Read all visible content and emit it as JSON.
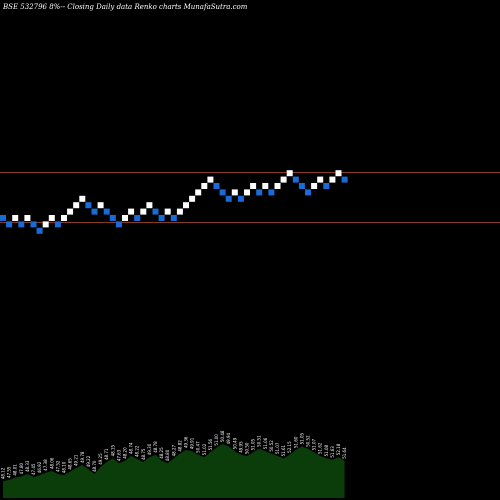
{
  "header": {
    "title": "BSE 532796  8%-- Closing Daily data  Renko  charts MunafaSutra.com"
  },
  "colors": {
    "background": "#000000",
    "up_brick": "#ffffff",
    "down_brick": "#1a6ad8",
    "reference_line": "#b5512e",
    "volume_fill": "#0a3d0a"
  },
  "chart_data": {
    "type": "renko",
    "title": "BSE 532796  8%-- Closing Daily data  Renko  charts MunafaSutra.com",
    "bricks": [
      {
        "level": 0,
        "dir": "down"
      },
      {
        "level": -1,
        "dir": "down"
      },
      {
        "level": 0,
        "dir": "up"
      },
      {
        "level": -1,
        "dir": "down"
      },
      {
        "level": 0,
        "dir": "up"
      },
      {
        "level": -1,
        "dir": "down"
      },
      {
        "level": -2,
        "dir": "down"
      },
      {
        "level": -1,
        "dir": "up"
      },
      {
        "level": 0,
        "dir": "up"
      },
      {
        "level": -1,
        "dir": "down"
      },
      {
        "level": 0,
        "dir": "up"
      },
      {
        "level": 1,
        "dir": "up"
      },
      {
        "level": 2,
        "dir": "up"
      },
      {
        "level": 3,
        "dir": "up"
      },
      {
        "level": 2,
        "dir": "down"
      },
      {
        "level": 1,
        "dir": "down"
      },
      {
        "level": 2,
        "dir": "up"
      },
      {
        "level": 1,
        "dir": "down"
      },
      {
        "level": 0,
        "dir": "down"
      },
      {
        "level": -1,
        "dir": "down"
      },
      {
        "level": 0,
        "dir": "up"
      },
      {
        "level": 1,
        "dir": "up"
      },
      {
        "level": 0,
        "dir": "down"
      },
      {
        "level": 1,
        "dir": "up"
      },
      {
        "level": 2,
        "dir": "up"
      },
      {
        "level": 1,
        "dir": "down"
      },
      {
        "level": 0,
        "dir": "down"
      },
      {
        "level": 1,
        "dir": "up"
      },
      {
        "level": 0,
        "dir": "down"
      },
      {
        "level": 1,
        "dir": "up"
      },
      {
        "level": 2,
        "dir": "up"
      },
      {
        "level": 3,
        "dir": "up"
      },
      {
        "level": 4,
        "dir": "up"
      },
      {
        "level": 5,
        "dir": "up"
      },
      {
        "level": 6,
        "dir": "up"
      },
      {
        "level": 5,
        "dir": "down"
      },
      {
        "level": 4,
        "dir": "down"
      },
      {
        "level": 3,
        "dir": "down"
      },
      {
        "level": 4,
        "dir": "up"
      },
      {
        "level": 3,
        "dir": "down"
      },
      {
        "level": 4,
        "dir": "up"
      },
      {
        "level": 5,
        "dir": "up"
      },
      {
        "level": 4,
        "dir": "down"
      },
      {
        "level": 5,
        "dir": "up"
      },
      {
        "level": 4,
        "dir": "down"
      },
      {
        "level": 5,
        "dir": "up"
      },
      {
        "level": 6,
        "dir": "up"
      },
      {
        "level": 7,
        "dir": "up"
      },
      {
        "level": 6,
        "dir": "down"
      },
      {
        "level": 5,
        "dir": "down"
      },
      {
        "level": 4,
        "dir": "down"
      },
      {
        "level": 5,
        "dir": "up"
      },
      {
        "level": 6,
        "dir": "up"
      },
      {
        "level": 5,
        "dir": "down"
      },
      {
        "level": 6,
        "dir": "up"
      },
      {
        "level": 7,
        "dir": "up"
      },
      {
        "level": 6,
        "dir": "down"
      }
    ],
    "reference_lines": [
      6,
      -1
    ],
    "volume": [
      0.28,
      0.3,
      0.34,
      0.36,
      0.4,
      0.35,
      0.38,
      0.42,
      0.45,
      0.4,
      0.38,
      0.44,
      0.5,
      0.55,
      0.48,
      0.4,
      0.52,
      0.6,
      0.66,
      0.58,
      0.62,
      0.7,
      0.65,
      0.6,
      0.68,
      0.72,
      0.62,
      0.58,
      0.66,
      0.74,
      0.8,
      0.78,
      0.72,
      0.68,
      0.76,
      0.84,
      0.9,
      0.86,
      0.78,
      0.72,
      0.7,
      0.76,
      0.82,
      0.78,
      0.74,
      0.7,
      0.66,
      0.72,
      0.8,
      0.86,
      0.82,
      0.76,
      0.7,
      0.66,
      0.64,
      0.68,
      0.62
    ],
    "volume_labels": [
      "48.12",
      "47.55",
      "48.01",
      "47.80",
      "48.33",
      "47.45",
      "46.92",
      "47.38",
      "48.06",
      "47.52",
      "48.10",
      "48.65",
      "49.21",
      "49.78",
      "49.22",
      "48.70",
      "49.25",
      "48.71",
      "48.15",
      "47.63",
      "48.20",
      "48.74",
      "48.22",
      "48.75",
      "49.30",
      "48.78",
      "48.25",
      "48.80",
      "48.27",
      "48.82",
      "49.36",
      "49.91",
      "50.47",
      "51.02",
      "51.56",
      "51.00",
      "50.48",
      "49.94",
      "50.49",
      "49.95",
      "50.50",
      "51.05",
      "50.51",
      "51.06",
      "50.52",
      "51.07",
      "51.61",
      "52.15",
      "51.60",
      "51.05",
      "50.52",
      "51.07",
      "51.62",
      "51.08",
      "51.63",
      "52.18",
      "51.64"
    ]
  }
}
